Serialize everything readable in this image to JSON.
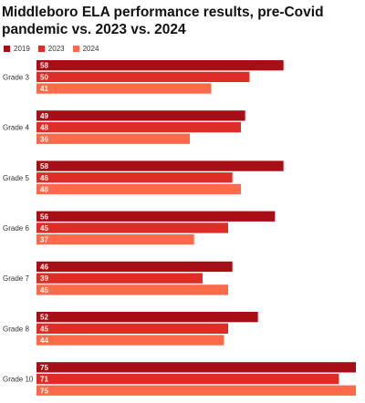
{
  "chart_data": {
    "type": "bar",
    "orientation": "horizontal",
    "title": "Middleboro ELA performance results, pre-Covid pandemic vs. 2023 vs. 2024",
    "categories": [
      "Grade 3",
      "Grade 4",
      "Grade 5",
      "Grade 6",
      "Grade 7",
      "Grade 8",
      "Grade 10"
    ],
    "series": [
      {
        "name": "2019",
        "color": "#a50f15",
        "values": [
          58,
          49,
          58,
          56,
          46,
          52,
          75
        ]
      },
      {
        "name": "2023",
        "color": "#de2d26",
        "values": [
          50,
          48,
          46,
          45,
          39,
          45,
          71
        ]
      },
      {
        "name": "2024",
        "color": "#fb6a4a",
        "values": [
          41,
          36,
          48,
          37,
          45,
          44,
          75
        ]
      }
    ],
    "xlim": [
      0,
      75
    ],
    "legend_position": "top-left",
    "grid": false
  }
}
